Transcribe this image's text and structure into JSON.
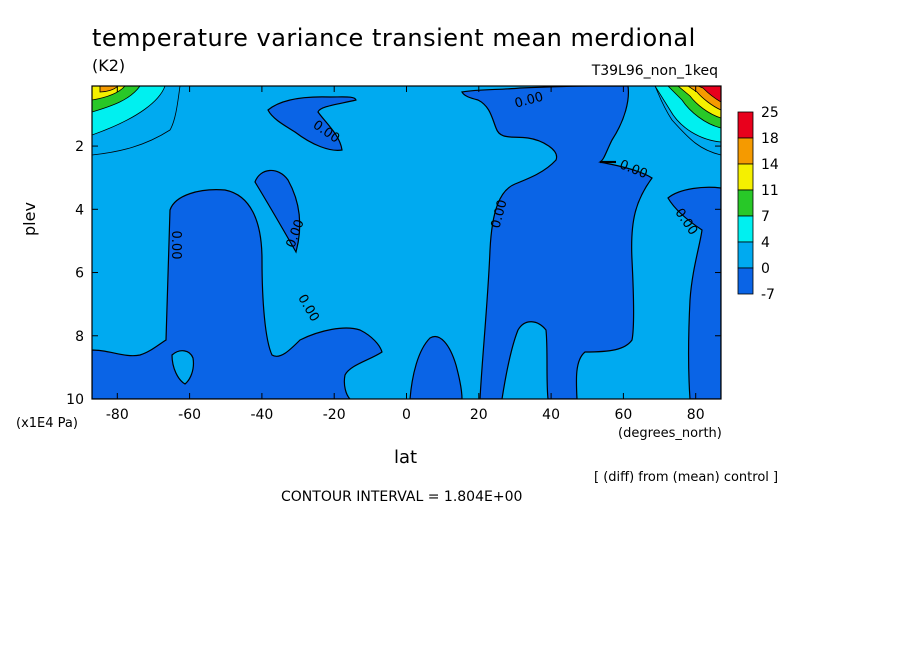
{
  "chart_data": {
    "type": "contour",
    "title": "temperature variance transient mean merdional",
    "units": "(K2)",
    "run_name": "T39L96_non_1keq",
    "xlabel": "lat",
    "x_units": "(degrees_north)",
    "ylabel": "plev",
    "y_units": "(x1E4 Pa)",
    "xlim": [
      -87,
      87
    ],
    "ylim": [
      10,
      0.1
    ],
    "x_ticks": [
      -80,
      -60,
      -40,
      -20,
      0,
      20,
      40,
      60,
      80
    ],
    "x_tick_labels": [
      "-80",
      "-60",
      "-40",
      "-20",
      "0",
      "20",
      "40",
      "60",
      "80"
    ],
    "y_ticks": [
      2,
      4,
      6,
      8,
      10
    ],
    "y_tick_labels": [
      "2",
      "4",
      "6",
      "8",
      "10"
    ],
    "contour_labels": [
      "0.00",
      "0.00",
      "0.00",
      "0.00",
      "0.00",
      "0.00",
      "0.00",
      "0.00"
    ],
    "colorbar": {
      "levels": [
        "25",
        "18",
        "14",
        "11",
        "7",
        "4",
        "0",
        "-7"
      ],
      "colors": [
        "#e8001c",
        "#f59a00",
        "#f5f000",
        "#28c828",
        "#00f0f0",
        "#00aaf0",
        "#0a64e6"
      ]
    },
    "note": "[ (diff) from (mean) control ]",
    "contour_interval": "CONTOUR INTERVAL = 1.804E+00"
  }
}
